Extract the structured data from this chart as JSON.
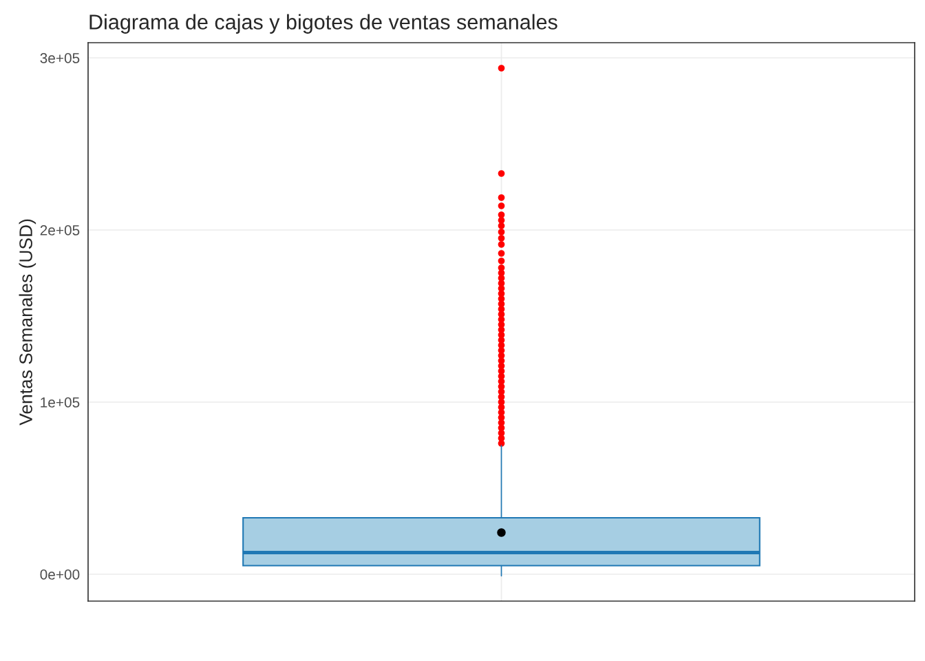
{
  "chart_data": {
    "type": "box",
    "title": "Diagrama de cajas y bigotes de ventas semanales",
    "ylabel": "Ventas Semanales (USD)",
    "categories": [
      null
    ],
    "boxes": [
      {
        "low": -1000,
        "q1": 5000,
        "median": 12600,
        "q3": 32800,
        "high": 74800,
        "mean": 24200,
        "outliers": [
          294000,
          232800,
          218800,
          214000,
          208800,
          205600,
          202400,
          198800,
          195200,
          191600,
          186400,
          182000,
          178000,
          175000,
          172000,
          169000,
          166000,
          163000,
          160000,
          157000,
          154000,
          151000,
          148000,
          145000,
          142000,
          139000,
          136000,
          133000,
          130000,
          127000,
          124000,
          121000,
          118000,
          115000,
          112000,
          109000,
          106000,
          103000,
          100000,
          97000,
          94000,
          91000,
          88000,
          85000,
          82000,
          79000,
          76000
        ]
      }
    ],
    "color": "#a6cee3",
    "ylim": [
      -15600,
      308800
    ],
    "yticks": [
      {
        "value": 0,
        "label": "0e+00"
      },
      {
        "value": 100000,
        "label": "1e+05"
      },
      {
        "value": 200000,
        "label": "2e+05"
      },
      {
        "value": 300000,
        "label": "3e+05"
      }
    ],
    "grid": true
  }
}
